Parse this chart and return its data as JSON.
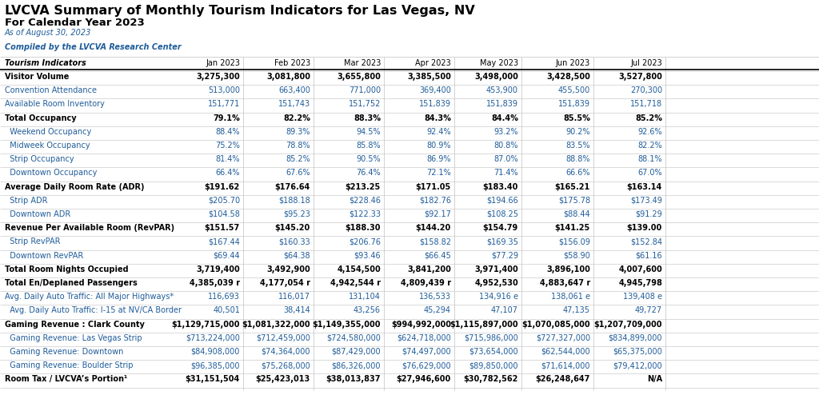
{
  "title": "LVCVA Summary of Monthly Tourism Indicators for Las Vegas, NV",
  "subtitle": "For Calendar Year 2023",
  "as_of": "As of August 30, 2023",
  "compiled": "Compiled by the LVCVA Research Center",
  "columns": [
    "Tourism Indicators",
    "Jan 2023",
    "Feb 2023",
    "Mar 2023",
    "Apr 2023",
    "May 2023",
    "Jun 2023",
    "Jul 2023"
  ],
  "rows": [
    {
      "label": "Visitor Volume",
      "indent": 0,
      "bold": true,
      "values": [
        "3,275,300",
        "3,081,800",
        "3,655,800",
        "3,385,500",
        "3,498,000",
        "3,428,500",
        "3,527,800"
      ]
    },
    {
      "label": "Convention Attendance",
      "indent": 0,
      "bold": false,
      "values": [
        "513,000",
        "663,400",
        "771,000",
        "369,400",
        "453,900",
        "455,500",
        "270,300"
      ]
    },
    {
      "label": "Available Room Inventory",
      "indent": 0,
      "bold": false,
      "values": [
        "151,771",
        "151,743",
        "151,752",
        "151,839",
        "151,839",
        "151,839",
        "151,718"
      ]
    },
    {
      "label": "Total Occupancy",
      "indent": 0,
      "bold": true,
      "values": [
        "79.1%",
        "82.2%",
        "88.3%",
        "84.3%",
        "84.4%",
        "85.5%",
        "85.2%"
      ]
    },
    {
      "label": "  Weekend Occupancy",
      "indent": 1,
      "bold": false,
      "values": [
        "88.4%",
        "89.3%",
        "94.5%",
        "92.4%",
        "93.2%",
        "90.2%",
        "92.6%"
      ]
    },
    {
      "label": "  Midweek Occupancy",
      "indent": 1,
      "bold": false,
      "values": [
        "75.2%",
        "78.8%",
        "85.8%",
        "80.9%",
        "80.8%",
        "83.5%",
        "82.2%"
      ]
    },
    {
      "label": "  Strip Occupancy",
      "indent": 1,
      "bold": false,
      "values": [
        "81.4%",
        "85.2%",
        "90.5%",
        "86.9%",
        "87.0%",
        "88.8%",
        "88.1%"
      ]
    },
    {
      "label": "  Downtown Occupancy",
      "indent": 1,
      "bold": false,
      "values": [
        "66.4%",
        "67.6%",
        "76.4%",
        "72.1%",
        "71.4%",
        "66.6%",
        "67.0%"
      ]
    },
    {
      "label": "Average Daily Room Rate (ADR)",
      "indent": 0,
      "bold": true,
      "values": [
        "$191.62",
        "$176.64",
        "$213.25",
        "$171.05",
        "$183.40",
        "$165.21",
        "$163.14"
      ]
    },
    {
      "label": "  Strip ADR",
      "indent": 1,
      "bold": false,
      "values": [
        "$205.70",
        "$188.18",
        "$228.46",
        "$182.76",
        "$194.66",
        "$175.78",
        "$173.49"
      ]
    },
    {
      "label": "  Downtown ADR",
      "indent": 1,
      "bold": false,
      "values": [
        "$104.58",
        "$95.23",
        "$122.33",
        "$92.17",
        "$108.25",
        "$88.44",
        "$91.29"
      ]
    },
    {
      "label": "Revenue Per Available Room (RevPAR)",
      "indent": 0,
      "bold": true,
      "values": [
        "$151.57",
        "$145.20",
        "$188.30",
        "$144.20",
        "$154.79",
        "$141.25",
        "$139.00"
      ]
    },
    {
      "label": "  Strip RevPAR",
      "indent": 1,
      "bold": false,
      "values": [
        "$167.44",
        "$160.33",
        "$206.76",
        "$158.82",
        "$169.35",
        "$156.09",
        "$152.84"
      ]
    },
    {
      "label": "  Downtown RevPAR",
      "indent": 1,
      "bold": false,
      "values": [
        "$69.44",
        "$64.38",
        "$93.46",
        "$66.45",
        "$77.29",
        "$58.90",
        "$61.16"
      ]
    },
    {
      "label": "Total Room Nights Occupied",
      "indent": 0,
      "bold": true,
      "values": [
        "3,719,400",
        "3,492,900",
        "4,154,500",
        "3,841,200",
        "3,971,400",
        "3,896,100",
        "4,007,600"
      ]
    },
    {
      "label": "Total En/Deplaned Passengers",
      "indent": 0,
      "bold": true,
      "values": [
        "4,385,039 r",
        "4,177,054 r",
        "4,942,544 r",
        "4,809,439 r",
        "4,952,530",
        "4,883,647 r",
        "4,945,798"
      ]
    },
    {
      "label": "Avg. Daily Auto Traffic: All Major Highways*",
      "indent": 0,
      "bold": false,
      "values": [
        "116,693",
        "116,017",
        "131,104",
        "136,533",
        "134,916 e",
        "138,061 e",
        "139,408 e"
      ]
    },
    {
      "label": "  Avg. Daily Auto Traffic: I-15 at NV/CA Border",
      "indent": 1,
      "bold": false,
      "values": [
        "40,501",
        "38,414",
        "43,256",
        "45,294",
        "47,107",
        "47,135",
        "49,727"
      ]
    },
    {
      "label": "Gaming Revenue : Clark County",
      "indent": 0,
      "bold": true,
      "values": [
        "$1,129,715,000",
        "$1,081,322,000",
        "$1,149,355,000",
        "$994,992,000",
        "$1,115,897,000",
        "$1,070,085,000",
        "$1,207,709,000"
      ]
    },
    {
      "label": "  Gaming Revenue: Las Vegas Strip",
      "indent": 1,
      "bold": false,
      "values": [
        "$713,224,000",
        "$712,459,000",
        "$724,580,000",
        "$624,718,000",
        "$715,986,000",
        "$727,327,000",
        "$834,899,000"
      ]
    },
    {
      "label": "  Gaming Revenue: Downtown",
      "indent": 1,
      "bold": false,
      "values": [
        "$84,908,000",
        "$74,364,000",
        "$87,429,000",
        "$74,497,000",
        "$73,654,000",
        "$62,544,000",
        "$65,375,000"
      ]
    },
    {
      "label": "  Gaming Revenue: Boulder Strip",
      "indent": 1,
      "bold": false,
      "values": [
        "$96,385,000",
        "$75,268,000",
        "$86,326,000",
        "$76,629,000",
        "$89,850,000",
        "$71,614,000",
        "$79,412,000"
      ]
    },
    {
      "label": "Room Tax / LVCVA’s Portion¹",
      "indent": 0,
      "bold": true,
      "values": [
        "$31,151,504",
        "$25,423,013",
        "$38,013,837",
        "$27,946,600",
        "$30,782,562",
        "$26,248,647",
        "N/A"
      ]
    }
  ],
  "title_color": "#000000",
  "subtitle_color": "#000000",
  "as_of_color": "#1F5C99",
  "compiled_color": "#1F5C99",
  "header_color": "#000000",
  "bold_row_color": "#000000",
  "normal_row_color": "#1F5C99",
  "grid_color": "#C0C0C0",
  "bg_color": "#FFFFFF"
}
